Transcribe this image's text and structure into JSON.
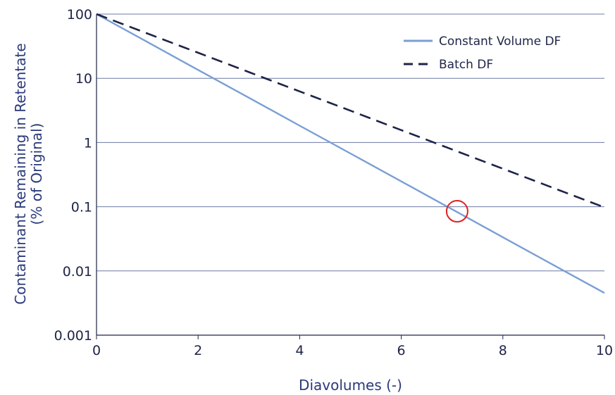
{
  "chart_data": {
    "type": "line",
    "xlabel": "Diavolumes (-)",
    "ylabel_lines": [
      "Contaminant Remaining in Retentate",
      "(% of Original)"
    ],
    "x_scale": "linear",
    "y_scale": "log",
    "xlim": [
      0,
      10
    ],
    "ylim": [
      0.001,
      100
    ],
    "x_ticks": [
      0,
      2,
      4,
      6,
      8,
      10
    ],
    "x_tick_labels": [
      "0",
      "2",
      "4",
      "6",
      "8",
      "10"
    ],
    "y_ticks": [
      0.001,
      0.01,
      0.1,
      1,
      10,
      100
    ],
    "y_tick_labels": [
      "0.001",
      "0.01",
      "0.1",
      "1",
      "10",
      "100"
    ],
    "grid": "horizontal",
    "legend_position": "top-right",
    "series": [
      {
        "name": "Constant Volume DF",
        "style": "solid",
        "color": "#7a9fd4",
        "x": [
          0,
          1,
          2,
          3,
          4,
          5,
          6,
          7,
          8,
          9,
          10
        ],
        "y": [
          100,
          36.8,
          13.5,
          4.98,
          1.83,
          0.674,
          0.248,
          0.0912,
          0.0335,
          0.0123,
          0.00454
        ]
      },
      {
        "name": "Batch DF",
        "style": "dashed",
        "color": "#1e2447",
        "x": [
          0,
          1,
          2,
          3,
          4,
          5,
          6,
          7,
          8,
          9,
          10
        ],
        "y": [
          100,
          50,
          25,
          12.5,
          6.25,
          3.13,
          1.56,
          0.781,
          0.391,
          0.195,
          0.0977
        ]
      }
    ],
    "annotations": [
      {
        "type": "circle",
        "x": 7.1,
        "y": 0.085,
        "color": "#e02020"
      }
    ]
  }
}
